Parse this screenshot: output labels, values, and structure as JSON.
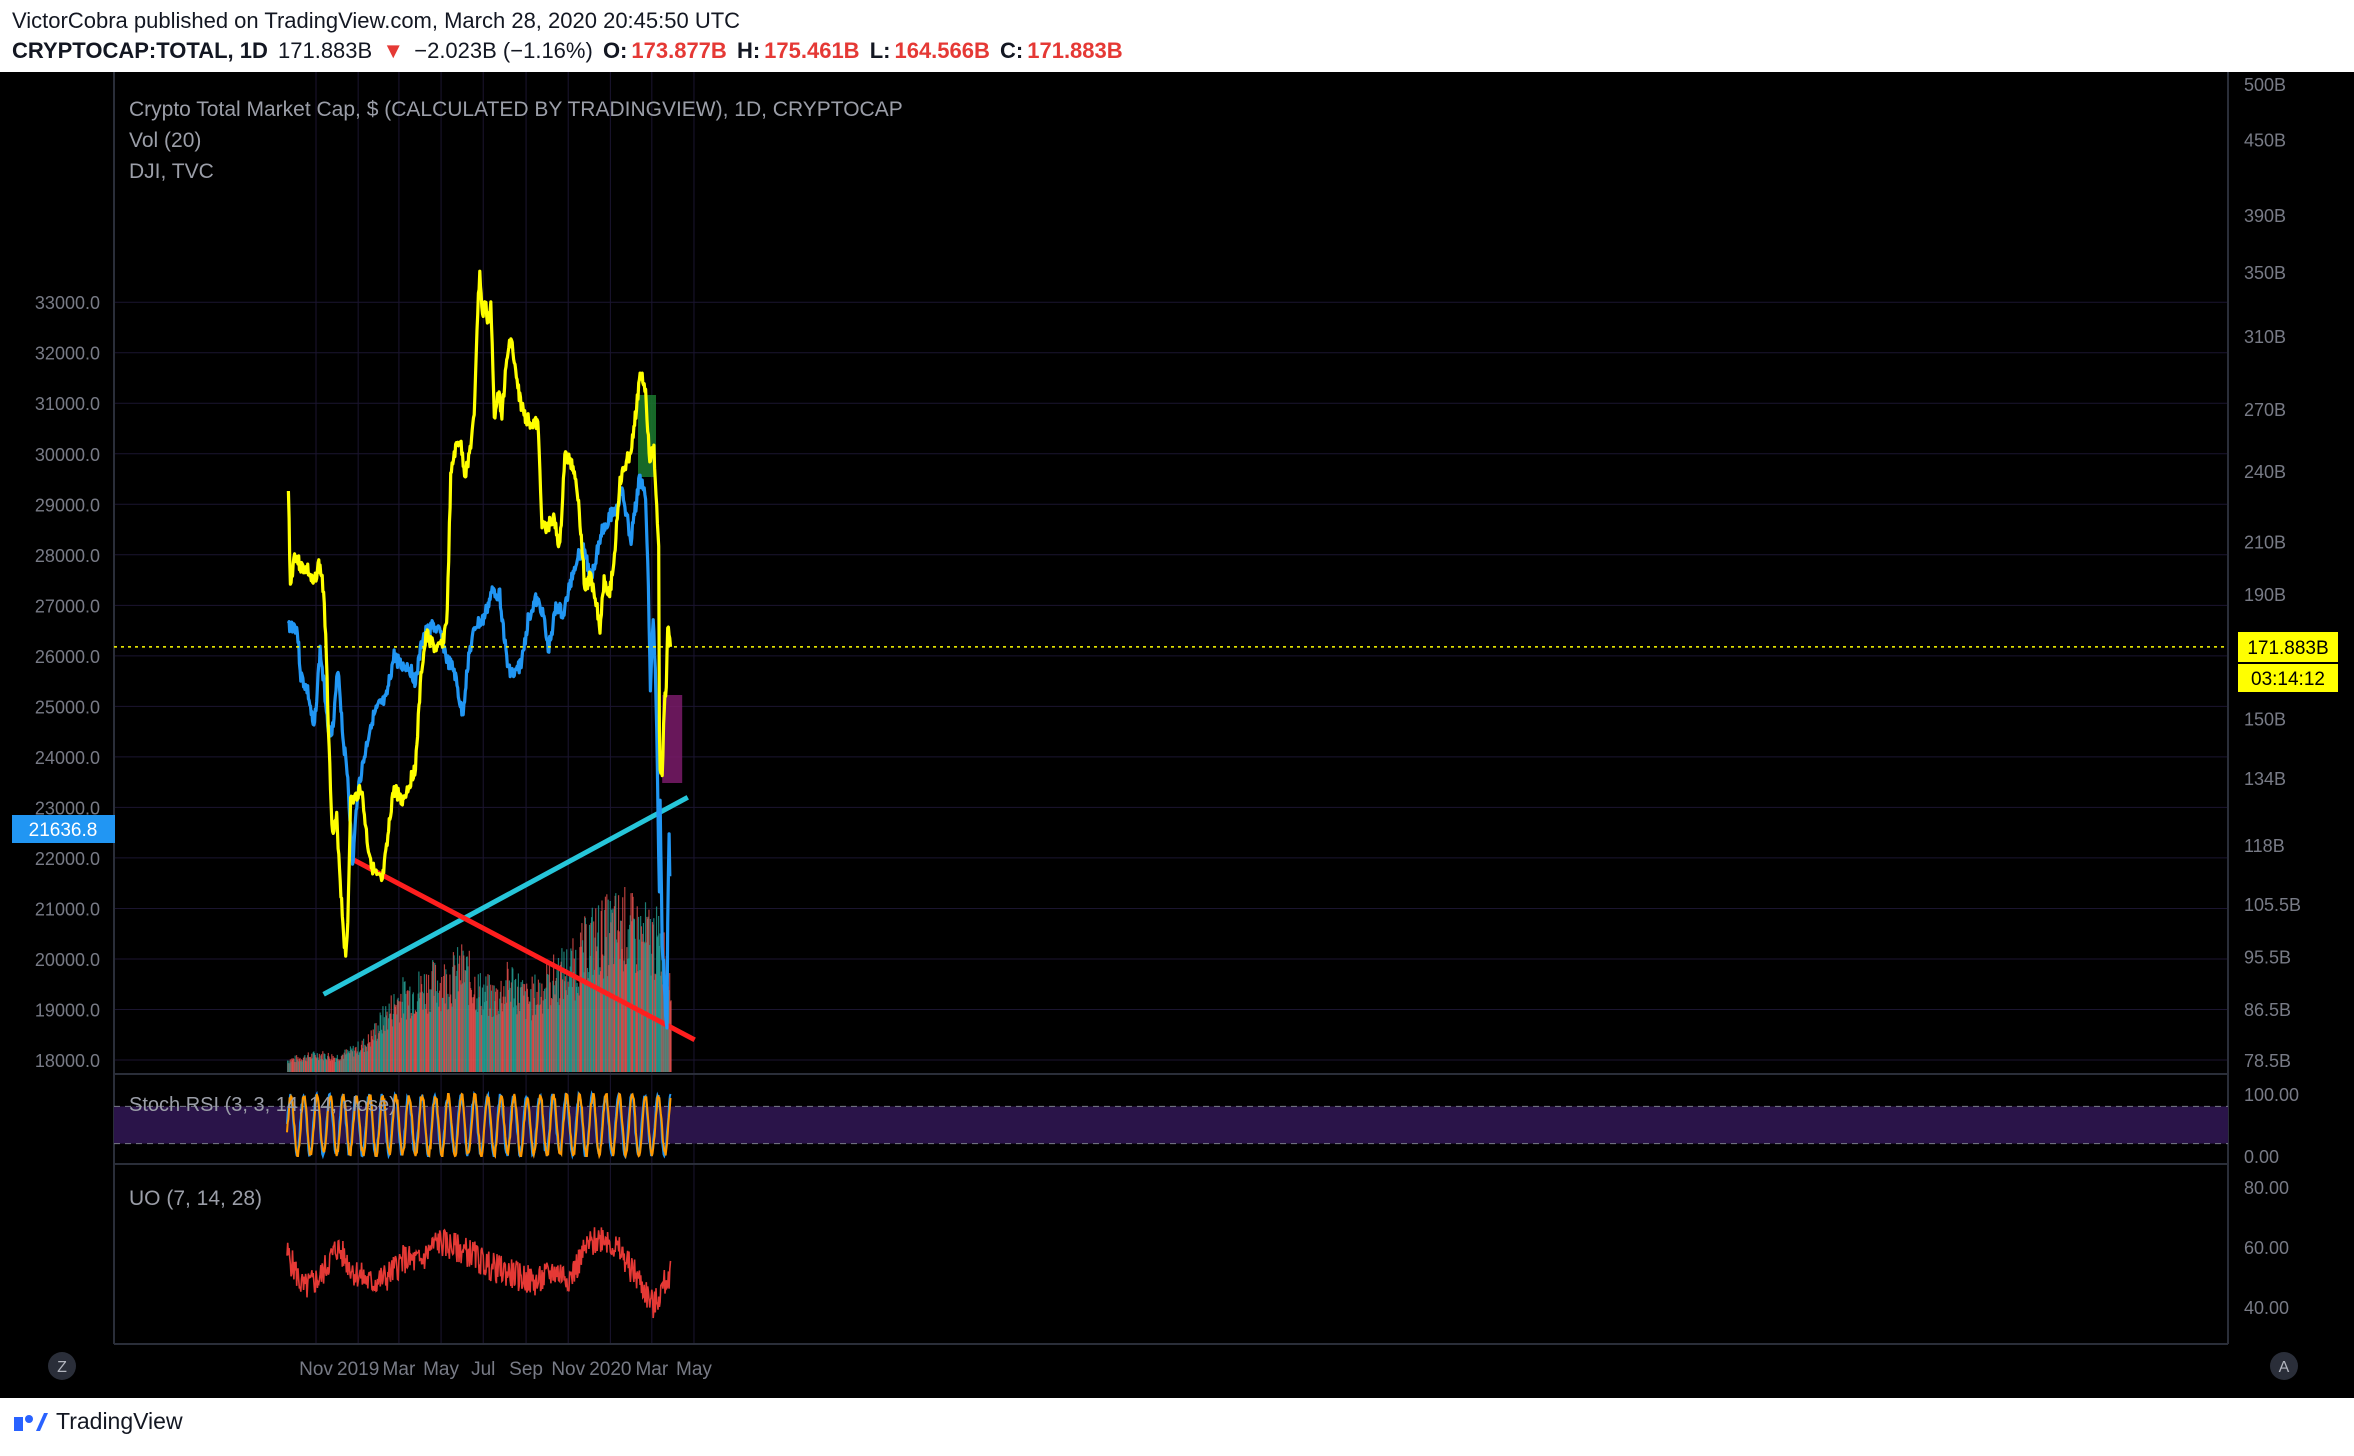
{
  "header": {
    "publisher_line": "VictorCobra published on TradingView.com, March 28, 2020 20:45:50 UTC",
    "symbol": "CRYPTOCAP:TOTAL, 1D",
    "last": "171.883B",
    "change": "−2.023B (−1.16%)",
    "o_key": "O:",
    "o_val": "173.877B",
    "h_key": "H:",
    "h_val": "175.461B",
    "l_key": "L:",
    "l_val": "164.566B",
    "c_key": "C:",
    "c_val": "171.883B"
  },
  "legend": {
    "main": "Crypto Total Market Cap, $ (CALCULATED BY TRADINGVIEW), 1D, CRYPTOCAP",
    "vol": "Vol (20)",
    "overlay": "DJI, TVC",
    "stoch": "Stoch RSI (3, 3, 14, 14, close)",
    "uo": "UO (7, 14, 28)"
  },
  "price_tag": "171.883B",
  "countdown": "03:14:12",
  "dji_tag": "21636.8",
  "footer": {
    "logo": "TradingView",
    "z_button": "Z",
    "a_button": "A"
  },
  "colors": {
    "background": "#000000",
    "total_line": "#ffff00",
    "dji_line": "#2196f3",
    "support_line": "#26c6da",
    "resistance_line": "#ff1e1e",
    "vol_up": "#26a69a",
    "vol_down": "#ef5350",
    "uo_line": "#e53935",
    "stoch_k": "#2196f3",
    "stoch_d": "#ff9800",
    "stoch_band": "#2a1449"
  },
  "chart_data": {
    "type": "line",
    "title": "Crypto Total Market Cap, $ (CALCULATED BY TRADINGVIEW), 1D, CRYPTOCAP",
    "x_ticks": [
      "Nov",
      "2019",
      "Mar",
      "May",
      "Jul",
      "Sep",
      "Nov",
      "2020",
      "Mar",
      "May"
    ],
    "left_axis_ticks": [
      "33000.0",
      "32000.0",
      "31000.0",
      "30000.0",
      "29000.0",
      "28000.0",
      "27000.0",
      "26000.0",
      "25000.0",
      "24000.0",
      "23000.0",
      "22000.0",
      "21000.0",
      "20000.0",
      "19000.0",
      "18000.0"
    ],
    "right_axis_ticks": [
      "500B",
      "450B",
      "390B",
      "350B",
      "310B",
      "270B",
      "240B",
      "210B",
      "190B",
      "150B",
      "134B",
      "118B",
      "105.5B",
      "95.5B",
      "86.5B",
      "78.5B"
    ],
    "stoch_ticks": [
      "100.00",
      "0.00"
    ],
    "uo_ticks": [
      "80.00",
      "60.00",
      "40.00"
    ],
    "series": [
      {
        "name": "Crypto Total Market Cap",
        "axis": "right_billions",
        "points": [
          [
            "2018-09-22",
            230
          ],
          [
            "2018-09-25",
            193
          ],
          [
            "2018-10-01",
            205
          ],
          [
            "2018-10-10",
            200
          ],
          [
            "2018-10-20",
            199
          ],
          [
            "2018-10-28",
            193
          ],
          [
            "2018-11-05",
            201
          ],
          [
            "2018-11-10",
            196
          ],
          [
            "2018-11-15",
            177
          ],
          [
            "2018-11-20",
            141
          ],
          [
            "2018-11-25",
            120
          ],
          [
            "2018-12-01",
            124
          ],
          [
            "2018-12-07",
            108
          ],
          [
            "2018-12-11",
            100
          ],
          [
            "2018-12-14",
            95
          ],
          [
            "2018-12-17",
            102
          ],
          [
            "2018-12-21",
            128
          ],
          [
            "2018-12-28",
            129
          ],
          [
            "2019-01-05",
            132
          ],
          [
            "2019-01-10",
            125
          ],
          [
            "2019-01-15",
            118
          ],
          [
            "2019-01-22",
            113
          ],
          [
            "2019-01-28",
            111
          ],
          [
            "2019-02-05",
            110
          ],
          [
            "2019-02-12",
            118
          ],
          [
            "2019-02-20",
            130
          ],
          [
            "2019-02-25",
            131
          ],
          [
            "2019-03-05",
            128
          ],
          [
            "2019-03-15",
            132
          ],
          [
            "2019-03-25",
            137
          ],
          [
            "2019-04-03",
            165
          ],
          [
            "2019-04-10",
            176
          ],
          [
            "2019-04-20",
            172
          ],
          [
            "2019-04-28",
            171
          ],
          [
            "2019-05-05",
            175
          ],
          [
            "2019-05-10",
            183
          ],
          [
            "2019-05-15",
            236
          ],
          [
            "2019-05-20",
            248
          ],
          [
            "2019-05-28",
            255
          ],
          [
            "2019-06-05",
            238
          ],
          [
            "2019-06-12",
            250
          ],
          [
            "2019-06-18",
            265
          ],
          [
            "2019-06-22",
            315
          ],
          [
            "2019-06-26",
            350
          ],
          [
            "2019-06-30",
            320
          ],
          [
            "2019-07-03",
            332
          ],
          [
            "2019-07-08",
            318
          ],
          [
            "2019-07-12",
            328
          ],
          [
            "2019-07-17",
            265
          ],
          [
            "2019-07-22",
            280
          ],
          [
            "2019-07-28",
            268
          ],
          [
            "2019-08-05",
            298
          ],
          [
            "2019-08-10",
            310
          ],
          [
            "2019-08-18",
            285
          ],
          [
            "2019-08-25",
            272
          ],
          [
            "2019-09-01",
            265
          ],
          [
            "2019-09-10",
            263
          ],
          [
            "2019-09-18",
            262
          ],
          [
            "2019-09-24",
            218
          ],
          [
            "2019-09-30",
            214
          ],
          [
            "2019-10-10",
            220
          ],
          [
            "2019-10-20",
            207
          ],
          [
            "2019-10-27",
            247
          ],
          [
            "2019-11-05",
            244
          ],
          [
            "2019-11-12",
            238
          ],
          [
            "2019-11-20",
            212
          ],
          [
            "2019-11-25",
            192
          ],
          [
            "2019-12-03",
            196
          ],
          [
            "2019-12-10",
            190
          ],
          [
            "2019-12-17",
            178
          ],
          [
            "2019-12-23",
            196
          ],
          [
            "2019-12-31",
            190
          ],
          [
            "2020-01-07",
            204
          ],
          [
            "2020-01-14",
            233
          ],
          [
            "2020-01-20",
            240
          ],
          [
            "2020-01-28",
            247
          ],
          [
            "2020-02-03",
            255
          ],
          [
            "2020-02-08",
            272
          ],
          [
            "2020-02-14",
            289
          ],
          [
            "2020-02-20",
            282
          ],
          [
            "2020-02-27",
            246
          ],
          [
            "2020-03-04",
            250
          ],
          [
            "2020-03-08",
            223
          ],
          [
            "2020-03-11",
            209
          ],
          [
            "2020-03-12",
            145
          ],
          [
            "2020-03-13",
            137
          ],
          [
            "2020-03-16",
            134
          ],
          [
            "2020-03-19",
            154
          ],
          [
            "2020-03-22",
            160
          ],
          [
            "2020-03-24",
            178
          ],
          [
            "2020-03-26",
            177
          ],
          [
            "2020-03-28",
            171.883
          ]
        ]
      },
      {
        "name": "DJI, TVC",
        "axis": "left_index",
        "points": [
          [
            "2018-09-22",
            26600
          ],
          [
            "2018-10-01",
            26600
          ],
          [
            "2018-10-05",
            26500
          ],
          [
            "2018-10-10",
            25600
          ],
          [
            "2018-10-20",
            25300
          ],
          [
            "2018-10-29",
            24500
          ],
          [
            "2018-11-07",
            26100
          ],
          [
            "2018-11-15",
            25100
          ],
          [
            "2018-11-20",
            24500
          ],
          [
            "2018-11-26",
            24600
          ],
          [
            "2018-12-03",
            25800
          ],
          [
            "2018-12-10",
            24400
          ],
          [
            "2018-12-17",
            23600
          ],
          [
            "2018-12-24",
            21800
          ],
          [
            "2018-12-31",
            23300
          ],
          [
            "2019-01-10",
            24000
          ],
          [
            "2019-01-20",
            24700
          ],
          [
            "2019-01-31",
            25000
          ],
          [
            "2019-02-10",
            25100
          ],
          [
            "2019-02-22",
            26000
          ],
          [
            "2019-03-05",
            25800
          ],
          [
            "2019-03-15",
            25800
          ],
          [
            "2019-03-25",
            25500
          ],
          [
            "2019-04-05",
            26400
          ],
          [
            "2019-04-20",
            26600
          ],
          [
            "2019-05-01",
            26400
          ],
          [
            "2019-05-10",
            25900
          ],
          [
            "2019-05-20",
            25700
          ],
          [
            "2019-06-01",
            24800
          ],
          [
            "2019-06-10",
            26000
          ],
          [
            "2019-06-20",
            26600
          ],
          [
            "2019-07-01",
            26700
          ],
          [
            "2019-07-15",
            27300
          ],
          [
            "2019-07-25",
            27200
          ],
          [
            "2019-08-05",
            25800
          ],
          [
            "2019-08-15",
            25600
          ],
          [
            "2019-08-26",
            25900
          ],
          [
            "2019-09-05",
            26800
          ],
          [
            "2019-09-15",
            27100
          ],
          [
            "2019-09-25",
            26900
          ],
          [
            "2019-10-03",
            26100
          ],
          [
            "2019-10-15",
            27000
          ],
          [
            "2019-10-25",
            26800
          ],
          [
            "2019-11-05",
            27500
          ],
          [
            "2019-11-15",
            28000
          ],
          [
            "2019-11-25",
            28100
          ],
          [
            "2019-12-03",
            27500
          ],
          [
            "2019-12-10",
            27900
          ],
          [
            "2019-12-20",
            28500
          ],
          [
            "2020-01-02",
            28800
          ],
          [
            "2020-01-10",
            28900
          ],
          [
            "2020-01-17",
            29300
          ],
          [
            "2020-01-31",
            28300
          ],
          [
            "2020-02-12",
            29500
          ],
          [
            "2020-02-20",
            29300
          ],
          [
            "2020-02-24",
            28000
          ],
          [
            "2020-02-28",
            25400
          ],
          [
            "2020-03-03",
            26700
          ],
          [
            "2020-03-06",
            25800
          ],
          [
            "2020-03-09",
            23800
          ],
          [
            "2020-03-12",
            21200
          ],
          [
            "2020-03-13",
            23200
          ],
          [
            "2020-03-16",
            20200
          ],
          [
            "2020-03-18",
            19900
          ],
          [
            "2020-03-20",
            19170
          ],
          [
            "2020-03-23",
            18590
          ],
          [
            "2020-03-24",
            20700
          ],
          [
            "2020-03-26",
            22550
          ],
          [
            "2020-03-27",
            21636.8
          ]
        ]
      }
    ],
    "trendlines": [
      {
        "name": "support",
        "from": [
          "2018-11-12",
          19300
        ],
        "to": [
          "2020-04-22",
          23200
        ]
      },
      {
        "name": "resistance",
        "from": [
          "2018-12-20",
          22000
        ],
        "to": [
          "2020-05-02",
          18400
        ]
      }
    ],
    "horizontal_line": {
      "value": "171.883B",
      "style": "dotted"
    },
    "volume": {
      "name": "Vol (20)",
      "relative_levels": [
        0.08,
        0.1,
        0.12,
        0.1,
        0.14,
        0.2,
        0.36,
        0.5,
        0.55,
        0.6,
        0.62,
        0.7,
        0.55,
        0.5,
        0.62,
        0.48,
        0.58,
        0.66,
        0.72,
        0.9,
        0.95,
        1.0,
        0.92,
        0.9,
        0.7
      ]
    },
    "stoch_rsi": {
      "ylim": [
        0,
        100
      ],
      "upper_band": 80,
      "lower_band": 20
    },
    "ultimate_oscillator": {
      "ylim": [
        30,
        80
      ],
      "levels": [
        58,
        46,
        50,
        60,
        52,
        48,
        50,
        56,
        55,
        62,
        60,
        58,
        54,
        52,
        50,
        48,
        52,
        50,
        60,
        64,
        58,
        50,
        40,
        52
      ]
    }
  }
}
